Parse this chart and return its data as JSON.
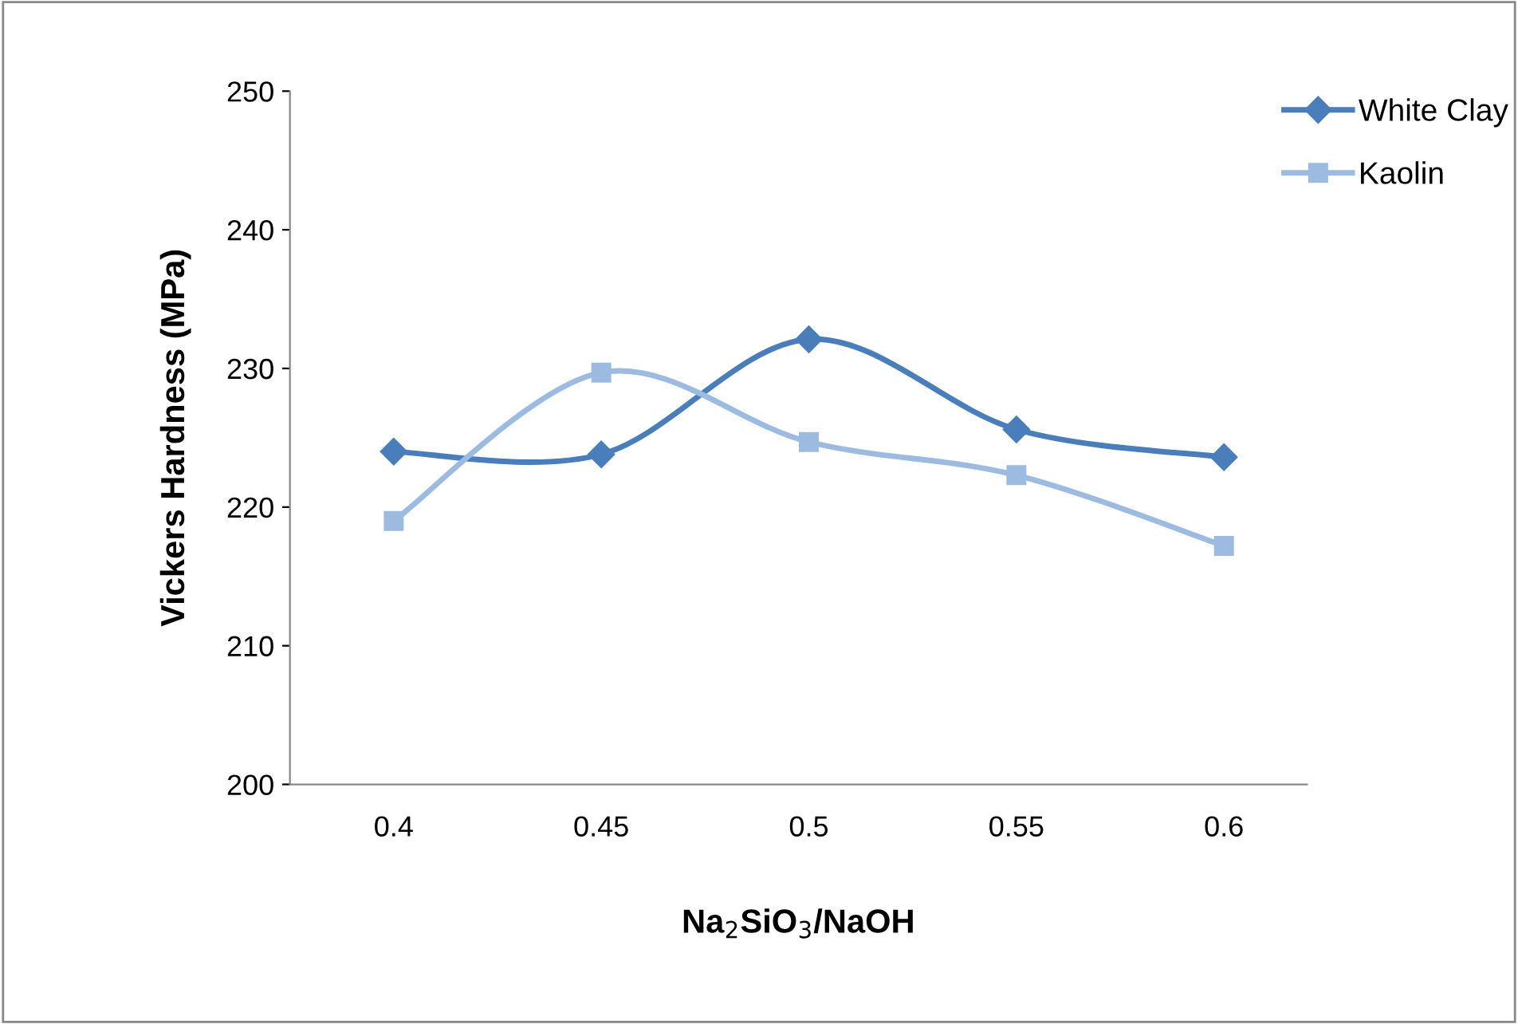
{
  "chart_data": {
    "type": "line",
    "xlabel": "Na$_{2}$SiO$_{3}$/NaOH",
    "ylabel": "Vickers Hardness (MPa)",
    "categories": [
      "0.4",
      "0.45",
      "0.5",
      "0.55",
      "0.6"
    ],
    "series": [
      {
        "name": "White Clay",
        "color": "#4a7ebb",
        "marker": "diamond",
        "values": [
          224,
          223.8,
          232.1,
          225.6,
          223.6
        ]
      },
      {
        "name": "Kaolin",
        "color": "#9dbbe0",
        "marker": "square",
        "values": [
          219,
          229.7,
          224.7,
          222.3,
          217.2
        ]
      }
    ],
    "ylim": [
      200,
      250
    ],
    "yticks": [
      200,
      210,
      220,
      230,
      240,
      250
    ],
    "grid": false,
    "legend": "top right",
    "line_style": "solid"
  }
}
